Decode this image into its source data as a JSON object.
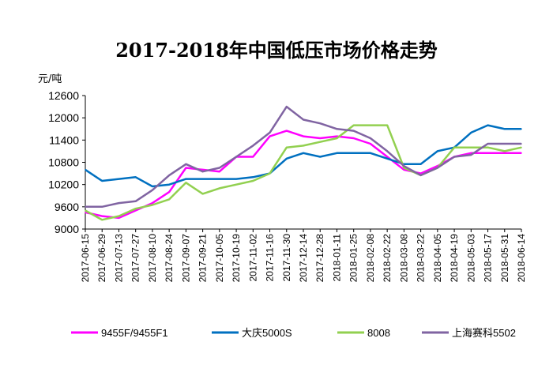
{
  "chart_data": {
    "type": "line",
    "title": "2017-2018年中国低压市场价格走势",
    "ylabel": "元/吨",
    "xlabel": "",
    "ylim": [
      9000,
      12600
    ],
    "yticks": [
      9000,
      9600,
      10200,
      10800,
      11400,
      12000,
      12600
    ],
    "grid": false,
    "legend": "bottom",
    "x_tick_labels": [
      "2017-06-15",
      "2017-06-29",
      "2017-07-13",
      "2017-07-27",
      "2017-08-10",
      "2017-08-24",
      "2017-09-07",
      "2017-09-21",
      "2017-10-05",
      "2017-10-19",
      "2017-11-02",
      "2017-11-16",
      "2017-11-30",
      "2017-12-14",
      "2017-12-28",
      "2018-01-11",
      "2018-01-25",
      "2018-02-08",
      "2018-02-22",
      "2018-03-08",
      "2018-03-22",
      "2018-04-05",
      "2018-04-19",
      "2018-05-03",
      "2018-05-17",
      "2018-05-31",
      "2018-06-14"
    ],
    "x": [
      "2017-06-15",
      "2017-06-29",
      "2017-07-13",
      "2017-07-27",
      "2017-08-10",
      "2017-08-24",
      "2017-09-07",
      "2017-09-21",
      "2017-10-05",
      "2017-10-19",
      "2017-11-02",
      "2017-11-16",
      "2017-11-30",
      "2017-12-14",
      "2017-12-28",
      "2018-01-11",
      "2018-01-25",
      "2018-02-08",
      "2018-02-22",
      "2018-03-08",
      "2018-03-22",
      "2018-04-05",
      "2018-04-19",
      "2018-05-03",
      "2018-05-17",
      "2018-05-31",
      "2018-06-14"
    ],
    "series": [
      {
        "name": "9455F/9455F1",
        "color": "#ff00ff",
        "values": [
          9450,
          9350,
          9300,
          9500,
          9700,
          10000,
          10650,
          10600,
          10550,
          10950,
          10950,
          11500,
          11650,
          11500,
          11450,
          11500,
          11450,
          11300,
          10950,
          10600,
          10500,
          10700,
          10950,
          11050,
          11050,
          11050,
          11050
        ]
      },
      {
        "name": "大庆5000S",
        "color": "#0070c0",
        "values": [
          10600,
          10300,
          10350,
          10400,
          10150,
          10200,
          10350,
          10350,
          10350,
          10350,
          10400,
          10500,
          10900,
          11050,
          10950,
          11050,
          11050,
          11050,
          10900,
          10750,
          10750,
          11100,
          11200,
          11600,
          11800,
          11700,
          11700
        ]
      },
      {
        "name": "8008",
        "color": "#92d050",
        "values": [
          9500,
          9250,
          9350,
          9550,
          9650,
          9800,
          10250,
          9950,
          10100,
          10200,
          10300,
          10500,
          11200,
          11250,
          11350,
          11450,
          11800,
          11800,
          11800,
          10650,
          10450,
          10650,
          11200,
          11200,
          11200,
          11100,
          11200
        ]
      },
      {
        "name": "上海赛科5502",
        "color": "#8064a2",
        "values": [
          9600,
          9600,
          9700,
          9750,
          10050,
          10450,
          10750,
          10550,
          10650,
          10950,
          11250,
          11600,
          12300,
          11950,
          11850,
          11700,
          11650,
          11450,
          11100,
          10700,
          10450,
          10650,
          10950,
          11000,
          11300,
          11300,
          11300
        ]
      }
    ]
  }
}
